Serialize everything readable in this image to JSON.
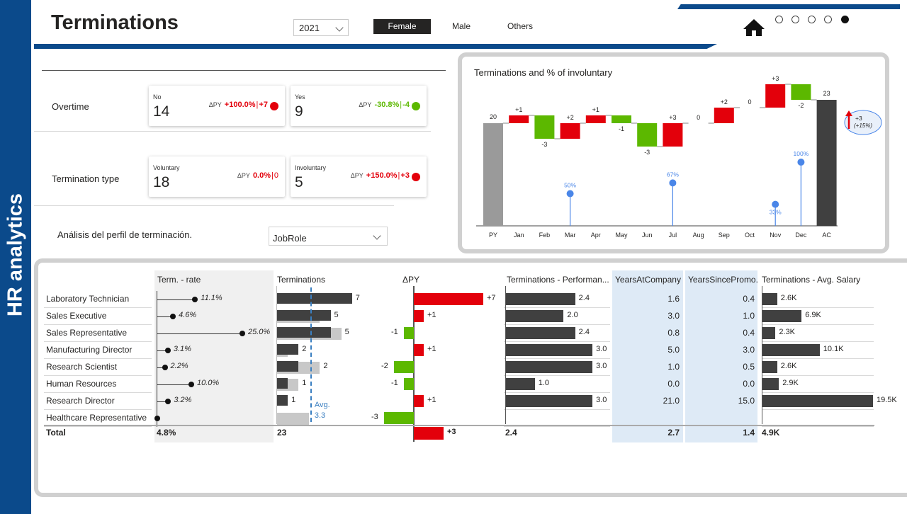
{
  "sidebar": {
    "title": "HR analytics"
  },
  "header": {
    "title": "Terminations",
    "year": "2021",
    "gender_options": [
      "Female",
      "Male",
      "Others"
    ],
    "selected_gender": "Female",
    "home_icon": "home-icon",
    "page_dots": 5,
    "active_dot": 5
  },
  "kpis": {
    "overtime": {
      "label": "Overtime",
      "cards": [
        {
          "label": "No",
          "value": "14",
          "dpy": "ΔPY",
          "pct": "+100.0%",
          "abs": "+7",
          "trend": "up"
        },
        {
          "label": "Yes",
          "value": "9",
          "dpy": "ΔPY",
          "pct": "-30.8%",
          "abs": "-4",
          "trend": "down"
        }
      ]
    },
    "termination_type": {
      "label": "Termination type",
      "cards": [
        {
          "label": "Voluntary",
          "value": "18",
          "dpy": "ΔPY",
          "pct": "0.0%",
          "abs": "0",
          "trend": "none"
        },
        {
          "label": "Involuntary",
          "value": "5",
          "dpy": "ΔPY",
          "pct": "+150.0%",
          "abs": "+3",
          "trend": "up"
        }
      ]
    }
  },
  "profile": {
    "label": "Análisis del perfil de terminación.",
    "dropdown": "JobRole"
  },
  "colors": {
    "brand": "#0b4a8b",
    "increase": "#e3000b",
    "decrease": "#5cb800",
    "bar": "#404040",
    "ghost": "#c8c8c8",
    "highlight": "#deeaf6",
    "lollipop": "#4a86e8"
  },
  "chart_data": {
    "type": "bar",
    "title": "Terminations and % of involuntary",
    "categories": [
      "PY",
      "Jan",
      "Feb",
      "Mar",
      "Apr",
      "May",
      "Jun",
      "Jul",
      "Aug",
      "Sep",
      "Oct",
      "Nov",
      "Dec",
      "AC"
    ],
    "waterfall_changes": [
      null,
      1,
      -3,
      2,
      1,
      -1,
      -3,
      3,
      0,
      2,
      0,
      3,
      -2,
      null
    ],
    "waterfall_labels": [
      "20",
      "+1",
      "-3",
      "+2",
      "+1",
      "-1",
      "-3",
      "+3",
      "0",
      "+2",
      "0",
      "+3",
      "-2",
      "23"
    ],
    "py_total": 20,
    "ac_total": 23,
    "involuntary_pct": [
      {
        "month": "Mar",
        "value": 50,
        "label": "50%"
      },
      {
        "month": "Jul",
        "value": 67,
        "label": "67%"
      },
      {
        "month": "Nov",
        "value": 33,
        "label": "33%"
      },
      {
        "month": "Dec",
        "value": 100,
        "label": "100%"
      }
    ],
    "delta_callout": {
      "abs": "+3",
      "pct": "(+15%)"
    }
  },
  "table": {
    "columns": [
      "Term. - rate",
      "Terminations",
      "ΔPY",
      "Terminations - Performan...",
      "YearsAtCompany",
      "YearsSincePromo.",
      "Terminations - Avg. Salary"
    ],
    "rows": [
      {
        "role": "Laboratory Technician",
        "rate": 11.1,
        "rate_label": "11.1%",
        "term": 7,
        "term_py": 0,
        "dpy": 7,
        "dpy_label": "+7",
        "perf": 2.4,
        "perf_label": "2.4",
        "yac": "1.6",
        "ysp": "0.4",
        "salary": 2.6,
        "salary_label": "2.6K"
      },
      {
        "role": "Sales Executive",
        "rate": 4.6,
        "rate_label": "4.6%",
        "term": 5,
        "term_py": 4,
        "dpy": 1,
        "dpy_label": "+1",
        "perf": 2.0,
        "perf_label": "2.0",
        "yac": "3.0",
        "ysp": "1.0",
        "salary": 6.9,
        "salary_label": "6.9K"
      },
      {
        "role": "Sales Representative",
        "rate": 25.0,
        "rate_label": "25.0%",
        "term": 5,
        "term_py": 6,
        "dpy": -1,
        "dpy_label": "-1",
        "perf": 2.4,
        "perf_label": "2.4",
        "yac": "0.8",
        "ysp": "0.4",
        "salary": 2.3,
        "salary_label": "2.3K"
      },
      {
        "role": "Manufacturing Director",
        "rate": 3.1,
        "rate_label": "3.1%",
        "term": 2,
        "term_py": 1,
        "dpy": 1,
        "dpy_label": "+1",
        "perf": 3.0,
        "perf_label": "3.0",
        "yac": "5.0",
        "ysp": "3.0",
        "salary": 10.1,
        "salary_label": "10.1K"
      },
      {
        "role": "Research Scientist",
        "rate": 2.2,
        "rate_label": "2.2%",
        "term": 2,
        "term_py": 4,
        "dpy": -2,
        "dpy_label": "-2",
        "perf": 3.0,
        "perf_label": "3.0",
        "yac": "1.0",
        "ysp": "0.5",
        "salary": 2.6,
        "salary_label": "2.6K"
      },
      {
        "role": "Human Resources",
        "rate": 10.0,
        "rate_label": "10.0%",
        "term": 1,
        "term_py": 2,
        "dpy": -1,
        "dpy_label": "-1",
        "perf": 1.0,
        "perf_label": "1.0",
        "yac": "0.0",
        "ysp": "0.0",
        "salary": 2.9,
        "salary_label": "2.9K"
      },
      {
        "role": "Research Director",
        "rate": 3.2,
        "rate_label": "3.2%",
        "term": 1,
        "term_py": 0,
        "dpy": 1,
        "dpy_label": "+1",
        "perf": 3.0,
        "perf_label": "3.0",
        "yac": "21.0",
        "ysp": "15.0",
        "salary": 19.5,
        "salary_label": "19.5K"
      },
      {
        "role": "Healthcare Representative",
        "rate": 0,
        "rate_label": "",
        "term": 0,
        "term_py": 3,
        "dpy": -3,
        "dpy_label": "-3",
        "perf": 0,
        "perf_label": "",
        "yac": "",
        "ysp": "",
        "salary": 0,
        "salary_label": ""
      }
    ],
    "total": {
      "role": "Total",
      "rate": "4.8%",
      "term": "23",
      "dpy": 3,
      "dpy_label": "+3",
      "perf": "2.4",
      "yac": "2.7",
      "ysp": "1.4",
      "salary": "4.9K"
    },
    "avg": {
      "label": "Avg.",
      "value": "3.3",
      "numeric": 3.3
    }
  }
}
